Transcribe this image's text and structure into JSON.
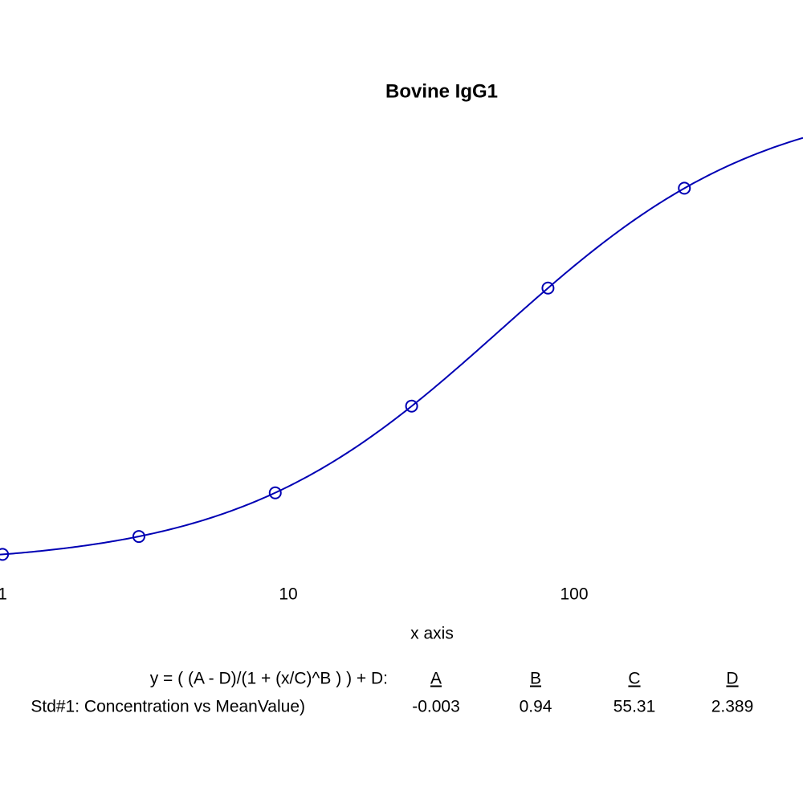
{
  "chart_data": {
    "type": "scatter",
    "title": "Bovine IgG1",
    "x_label": "x axis",
    "x": [
      1,
      3,
      9,
      27,
      81,
      243
    ],
    "values": [
      0.051,
      0.142,
      0.364,
      0.805,
      1.405,
      1.913
    ],
    "color": "#0000b4",
    "log_x": true,
    "xlim": [
      0.98,
      632
    ],
    "xticks": [
      1,
      10,
      100
    ],
    "ylim": [
      -0.07,
      2.87
    ],
    "fit": {
      "equation": "y = ( (A - D)/(1 + (x/C)^B ) ) + D:",
      "legend": "Std#1: Concentration vs MeanValue)",
      "names": [
        "A",
        "B",
        "C",
        "D"
      ],
      "params": [
        -0.003,
        0.94,
        55.31,
        2.389
      ]
    }
  }
}
